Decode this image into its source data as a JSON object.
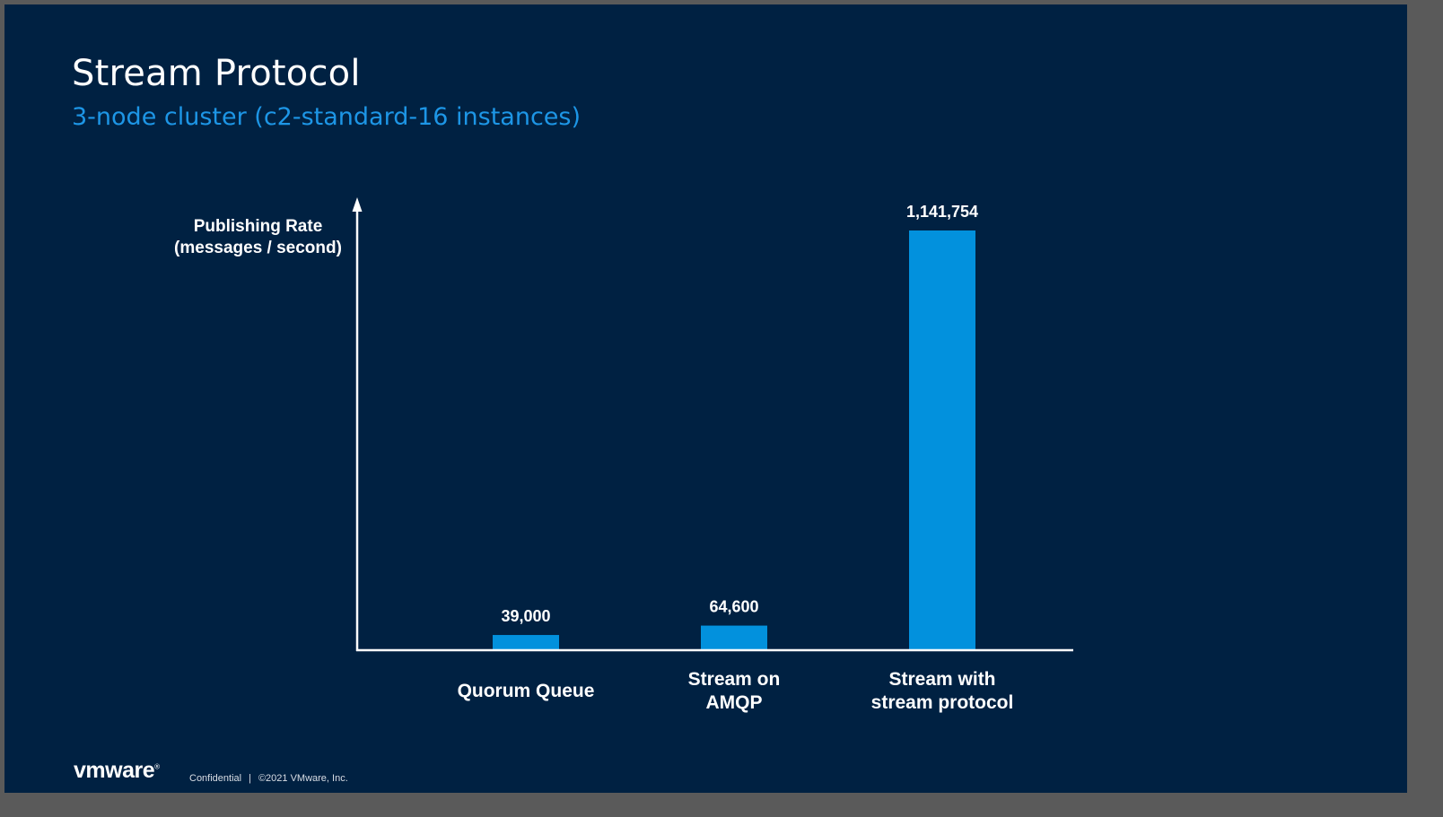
{
  "slide": {
    "title": "Stream Protocol",
    "subtitle": "3-node cluster (c2-standard-16 instances)",
    "colors": {
      "background": "#002142",
      "accent": "#1d96e6",
      "bar": "#0291dd",
      "text": "#ffffff"
    }
  },
  "chart_data": {
    "type": "bar",
    "categories": [
      [
        "Quorum Queue"
      ],
      [
        "Stream on",
        "AMQP"
      ],
      [
        "Stream with",
        "stream protocol"
      ]
    ],
    "values": [
      39000,
      64600,
      1141754
    ],
    "data_labels": [
      "39,000",
      "64,600",
      "1,141,754"
    ],
    "ylabel": [
      "Publishing Rate",
      "(messages / second)"
    ],
    "ylim": [
      0,
      1141754
    ],
    "grid": false,
    "legend": "none"
  },
  "footer": {
    "logo": "vmware",
    "logo_mark": "®",
    "confidential": "Confidential",
    "separator": "|",
    "copyright": "©2021 VMware, Inc."
  }
}
